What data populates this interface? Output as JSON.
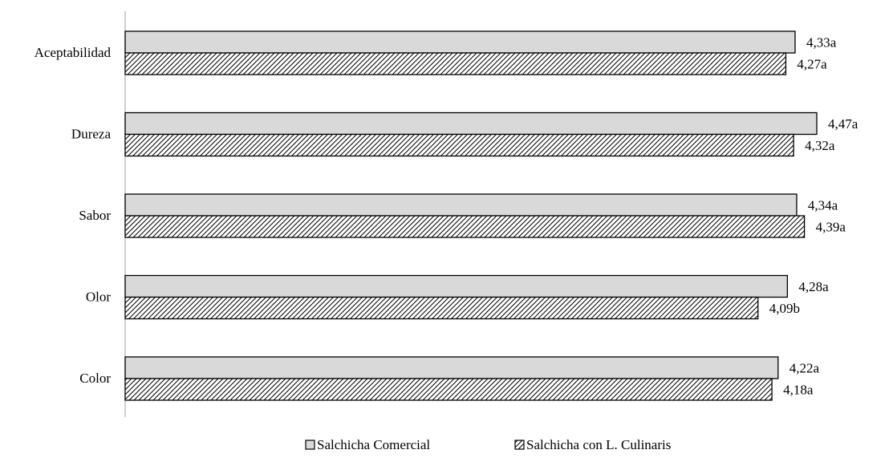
{
  "chart_data": {
    "type": "bar",
    "orientation": "horizontal",
    "title": "",
    "xlabel": "",
    "ylabel": "",
    "categories": [
      "Aceptabilidad",
      "Dureza",
      "Sabor",
      "Olor",
      "Color"
    ],
    "series": [
      {
        "name": "Salchicha Comercial",
        "values": [
          4.33,
          4.47,
          4.34,
          4.28,
          4.22
        ],
        "labels": [
          "4,33a",
          "4,47a",
          "4,34a",
          "4,28a",
          "4,22a"
        ],
        "fill": "#d9d9d9",
        "pattern": "solid"
      },
      {
        "name": "Salchicha con L. Culinaris",
        "values": [
          4.27,
          4.32,
          4.39,
          4.09,
          4.18
        ],
        "labels": [
          "4,27a",
          "4,32a",
          "4,39a",
          "4,09b",
          "4,18a"
        ],
        "fill": "#ffffff",
        "pattern": "diagonal-hatch"
      }
    ],
    "xlim": [
      0,
      4.47
    ],
    "grid": false,
    "x_axis_visible": false,
    "legend_position": "bottom",
    "colors": {
      "axis": "#bfbfbf",
      "bar_stroke": "#000000",
      "hatch": "#000000"
    }
  }
}
